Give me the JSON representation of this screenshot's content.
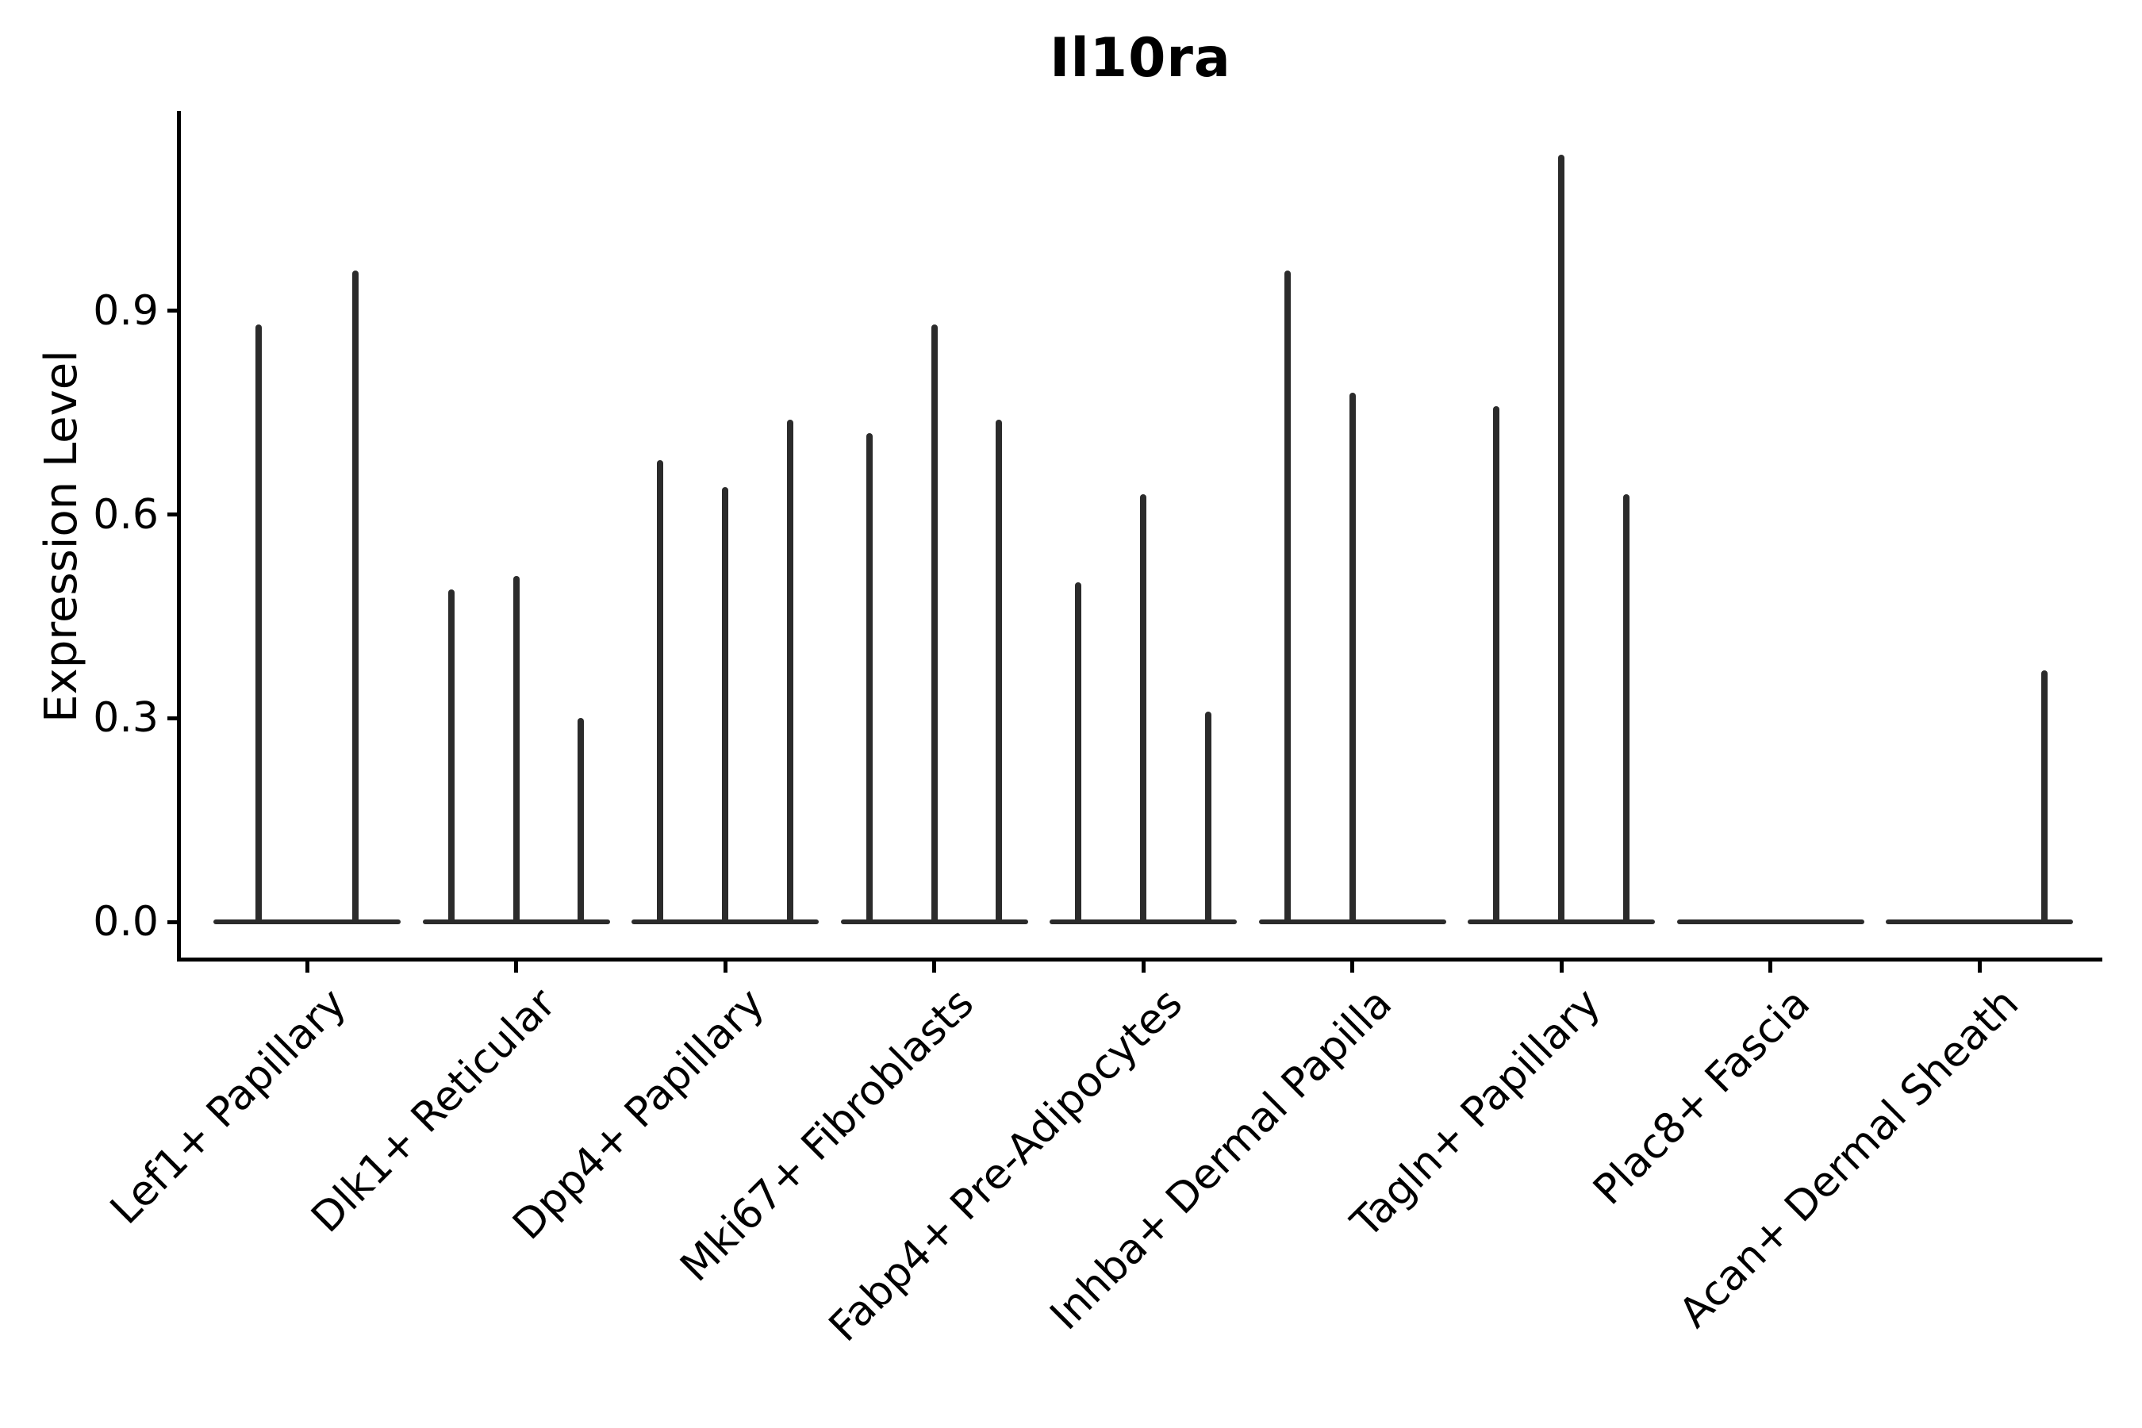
{
  "chart_data": {
    "type": "violin",
    "title": "Il10ra",
    "xlabel": "",
    "ylabel": "Expression Level",
    "ytick_values": [
      0.0,
      0.3,
      0.6,
      0.9
    ],
    "ytick_labels": [
      "0.0",
      "0.3",
      "0.6",
      "0.9"
    ],
    "ylim": [
      -0.05,
      1.25
    ],
    "legend": "none",
    "grid": "off",
    "colors": {
      "violin": "#2b2b2b",
      "axis": "#000000",
      "text": "#000000",
      "background": "#ffffff"
    },
    "categories": [
      {
        "label": "Lef1+ Papillary",
        "violins": [
          {
            "offset": -0.23,
            "max": 0.88
          },
          {
            "offset": 0.23,
            "max": 0.96
          }
        ]
      },
      {
        "label": "Dlk1+ Reticular",
        "violins": [
          {
            "offset": -0.31,
            "max": 0.49
          },
          {
            "offset": 0,
            "max": 0.51
          },
          {
            "offset": 0.31,
            "max": 0.3
          }
        ]
      },
      {
        "label": "Dpp4+ Papillary",
        "violins": [
          {
            "offset": -0.31,
            "max": 0.68
          },
          {
            "offset": 0,
            "max": 0.64
          },
          {
            "offset": 0.31,
            "max": 0.74
          }
        ]
      },
      {
        "label": "Mki67+ Fibroblasts",
        "violins": [
          {
            "offset": -0.31,
            "max": 0.72
          },
          {
            "offset": 0,
            "max": 0.88
          },
          {
            "offset": 0.31,
            "max": 0.74
          }
        ]
      },
      {
        "label": "Fabp4+ Pre-Adipocytes",
        "violins": [
          {
            "offset": -0.31,
            "max": 0.5
          },
          {
            "offset": 0,
            "max": 0.63
          },
          {
            "offset": 0.31,
            "max": 0.31
          }
        ]
      },
      {
        "label": "Inhba+ Dermal Papilla",
        "violins": [
          {
            "offset": -0.31,
            "max": 0.96
          },
          {
            "offset": 0,
            "max": 0.78
          },
          {
            "offset": 0.31,
            "max": 0.0
          }
        ]
      },
      {
        "label": "Tagln+ Papillary",
        "violins": [
          {
            "offset": -0.31,
            "max": 0.76
          },
          {
            "offset": 0,
            "max": 1.13
          },
          {
            "offset": 0.31,
            "max": 0.63
          }
        ]
      },
      {
        "label": "Plac8+ Fascia",
        "violins": [
          {
            "offset": -0.31,
            "max": 0.0
          },
          {
            "offset": 0,
            "max": 0.0
          },
          {
            "offset": 0.31,
            "max": 0.0
          }
        ]
      },
      {
        "label": "Acan+ Dermal Sheath",
        "violins": [
          {
            "offset": -0.31,
            "max": 0.0
          },
          {
            "offset": 0,
            "max": 0.0
          },
          {
            "offset": 0.31,
            "max": 0.37
          }
        ]
      }
    ]
  }
}
